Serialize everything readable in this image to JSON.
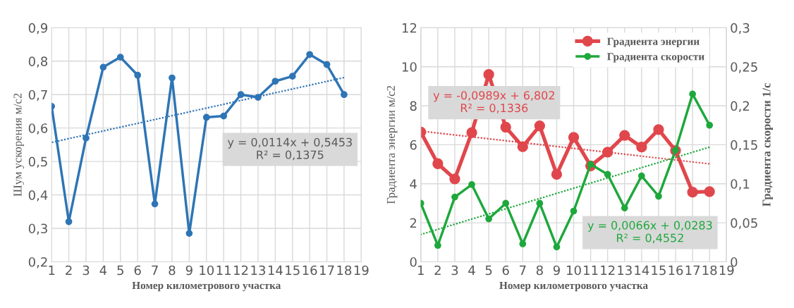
{
  "chart_data": [
    {
      "type": "line",
      "xlabel": "Номер километрового участка",
      "ylabel": "Шум ускорения м/с2",
      "categories": [
        "1",
        "2",
        "3",
        "4",
        "5",
        "6",
        "7",
        "8",
        "9",
        "10",
        "11",
        "12",
        "13",
        "14",
        "15",
        "16",
        "17",
        "18",
        "19"
      ],
      "series": [
        {
          "color": "#2e75b6",
          "values": [
            0.665,
            0.32,
            0.57,
            0.782,
            0.812,
            0.758,
            0.373,
            0.75,
            0.285,
            0.632,
            0.636,
            0.7,
            0.692,
            0.74,
            0.755,
            0.82,
            0.79,
            0.7,
            null
          ]
        },
        {
          "color": "#2e75b6",
          "line_style": "dotted",
          "marker": "none",
          "values": [
            0.557,
            null,
            null,
            null,
            null,
            null,
            null,
            null,
            null,
            null,
            null,
            null,
            null,
            null,
            null,
            null,
            null,
            0.751,
            null
          ]
        }
      ],
      "ylim": [
        0.2,
        0.9
      ],
      "yticks": [
        {
          "value": 0.2,
          "label": "0,2"
        },
        {
          "value": 0.3,
          "label": "0,3"
        },
        {
          "value": 0.4,
          "label": "0,4"
        },
        {
          "value": 0.5,
          "label": "0,5"
        },
        {
          "value": 0.6,
          "label": "0,6"
        },
        {
          "value": 0.7,
          "label": "0,7"
        },
        {
          "value": 0.8,
          "label": "0,8"
        },
        {
          "value": 0.9,
          "label": "0,9"
        }
      ],
      "grid": true,
      "marker": "circle",
      "annotations": [
        "y = 0,0114x + 0,5453\nR² = 0,1375"
      ]
    },
    {
      "type": "line",
      "xlabel": "Номер километрового участка",
      "ylabel": "Градиента энергии м/с2",
      "y2label": "Градиента скорости 1/с",
      "categories": [
        "1",
        "2",
        "3",
        "4",
        "5",
        "6",
        "7",
        "8",
        "9",
        "10",
        "11",
        "12",
        "13",
        "14",
        "15",
        "16",
        "17",
        "18",
        "19"
      ],
      "series": [
        {
          "name": "Градиента энергии",
          "color": "#e0474c",
          "values": [
            6.65,
            5.03,
            4.25,
            6.62,
            9.6,
            6.9,
            5.9,
            6.97,
            4.48,
            6.38,
            4.92,
            5.62,
            6.48,
            5.88,
            6.78,
            5.7,
            3.57,
            3.6,
            null
          ]
        },
        {
          "name": "Градиента скорости",
          "color": "#1ea83c",
          "axis": "y2",
          "values": [
            0.075,
            0.021,
            0.083,
            0.099,
            0.055,
            0.075,
            0.023,
            0.075,
            0.019,
            0.065,
            0.125,
            0.112,
            0.069,
            0.11,
            0.084,
            0.143,
            0.215,
            0.175,
            null
          ]
        },
        {
          "color": "#e0474c",
          "line_style": "dotted",
          "marker": "none",
          "values": [
            6.7,
            null,
            null,
            null,
            null,
            null,
            null,
            null,
            null,
            null,
            null,
            null,
            null,
            null,
            null,
            null,
            null,
            5.02,
            null
          ]
        },
        {
          "color": "#1ea83c",
          "axis": "y2",
          "line_style": "dotted",
          "marker": "none",
          "values": [
            0.035,
            null,
            null,
            null,
            null,
            null,
            null,
            null,
            null,
            null,
            null,
            null,
            null,
            null,
            null,
            null,
            null,
            0.147,
            null
          ]
        }
      ],
      "ylim": [
        0,
        12
      ],
      "yticks": [
        0,
        2,
        4,
        6,
        8,
        10,
        12
      ],
      "y2lim": [
        0,
        0.3
      ],
      "y2ticks": [
        {
          "value": 0,
          "label": "0"
        },
        {
          "value": 0.05,
          "label": "0,05"
        },
        {
          "value": 0.1,
          "label": "0,1"
        },
        {
          "value": 0.15,
          "label": "0,15"
        },
        {
          "value": 0.2,
          "label": "0,2"
        },
        {
          "value": 0.25,
          "label": "0,25"
        },
        {
          "value": 0.3,
          "label": "0,3"
        }
      ],
      "grid": true,
      "marker": "circle",
      "legend": "top right",
      "annotations": [
        "y = -0,0989x + 6,802\nR² = 0,1336",
        "y = 0,0066x + 0,0283\nR² = 0,4552"
      ]
    }
  ]
}
